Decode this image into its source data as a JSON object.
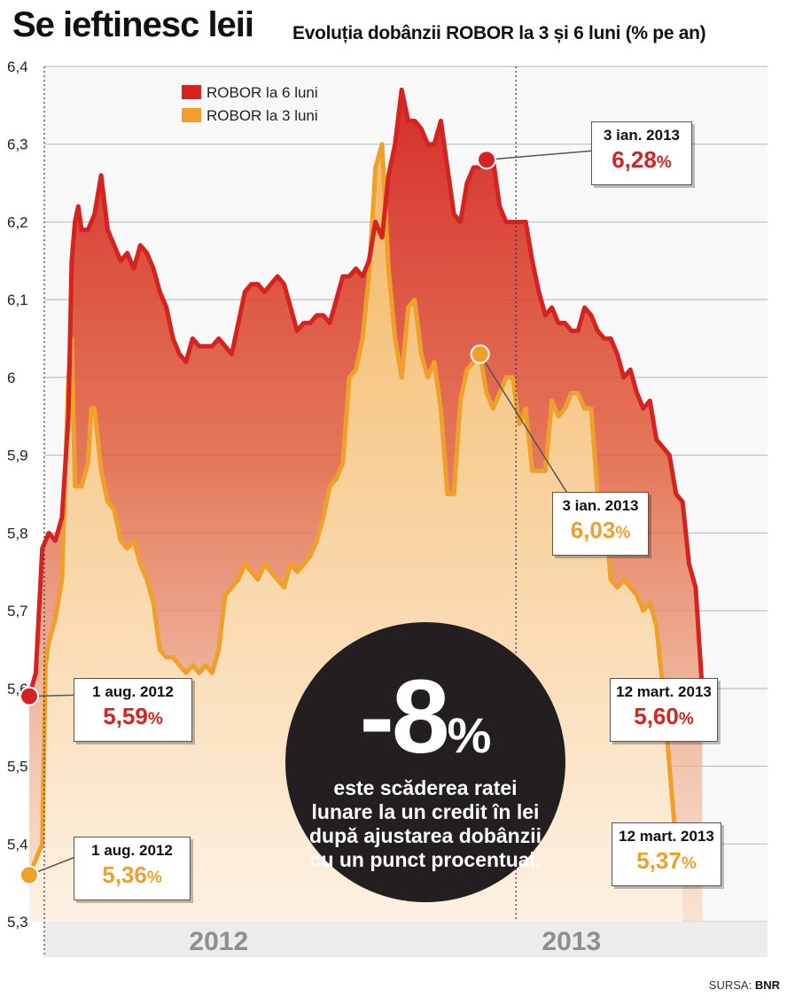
{
  "header": {
    "title": "Se ieftinesc leii",
    "subtitle": "Evoluția dobânzii ROBOR la 3 și 6 luni (% pe an)"
  },
  "source": {
    "label": "SURSA:",
    "name": "BNR"
  },
  "colors": {
    "robor6": "#d42320",
    "robor3": "#f0a02a",
    "circle": "#231f20",
    "grid": "#b5b5b5"
  },
  "highlight": {
    "value": "-8",
    "unit": "%",
    "text": "este scăderea ratei lunare la un credit în lei după ajustarea dobânzii cu un punct procentual."
  },
  "callouts": [
    {
      "date": "1 aug. 2012",
      "value": "5,59",
      "unit": "%",
      "series": "robor6"
    },
    {
      "date": "1 aug. 2012",
      "value": "5,36",
      "unit": "%",
      "series": "robor3"
    },
    {
      "date": "3 ian. 2013",
      "value": "6,28",
      "unit": "%",
      "series": "robor6"
    },
    {
      "date": "3 ian. 2013",
      "value": "6,03",
      "unit": "%",
      "series": "robor3"
    },
    {
      "date": "12 mart. 2013",
      "value": "5,60",
      "unit": "%",
      "series": "robor6"
    },
    {
      "date": "12 mart. 2013",
      "value": "5,37",
      "unit": "%",
      "series": "robor3"
    }
  ],
  "chart_data": {
    "type": "area",
    "title": "Evoluția dobânzii ROBOR la 3 și 6 luni (% pe an)",
    "ylim": [
      5.3,
      6.4
    ],
    "yticks": [
      5.3,
      5.4,
      5.5,
      5.6,
      5.7,
      5.8,
      5.9,
      6,
      6.1,
      6.2,
      6.3,
      6.4
    ],
    "ytick_labels": [
      "5,3",
      "5,4",
      "5,5",
      "5,6",
      "5,7",
      "5,8",
      "5,9",
      "6",
      "6,1",
      "6,2",
      "6,3",
      "6,4"
    ],
    "xlim": [
      0,
      226
    ],
    "x_unit": "zile lucrătoare de la 1 aug. 2012",
    "year_labels": [
      {
        "label": "2012",
        "x": 58
      },
      {
        "label": "2013",
        "x": 166
      }
    ],
    "year_divider_x": 149,
    "grid": true,
    "legend": "top-left",
    "series": [
      {
        "name": "ROBOR la 6 luni",
        "color": "#d42320",
        "points": [
          [
            0,
            5.59
          ],
          [
            2,
            5.62
          ],
          [
            4,
            5.78
          ],
          [
            6,
            5.8
          ],
          [
            8,
            5.79
          ],
          [
            10,
            5.82
          ],
          [
            12,
            5.95
          ],
          [
            13,
            6.15
          ],
          [
            14,
            6.2
          ],
          [
            15,
            6.22
          ],
          [
            16,
            6.19
          ],
          [
            18,
            6.19
          ],
          [
            20,
            6.21
          ],
          [
            22,
            6.26
          ],
          [
            24,
            6.19
          ],
          [
            26,
            6.17
          ],
          [
            28,
            6.15
          ],
          [
            30,
            6.16
          ],
          [
            32,
            6.14
          ],
          [
            34,
            6.17
          ],
          [
            36,
            6.16
          ],
          [
            38,
            6.14
          ],
          [
            40,
            6.11
          ],
          [
            42,
            6.09
          ],
          [
            44,
            6.05
          ],
          [
            46,
            6.03
          ],
          [
            48,
            6.02
          ],
          [
            50,
            6.05
          ],
          [
            52,
            6.04
          ],
          [
            54,
            6.04
          ],
          [
            56,
            6.04
          ],
          [
            58,
            6.05
          ],
          [
            60,
            6.04
          ],
          [
            62,
            6.03
          ],
          [
            64,
            6.07
          ],
          [
            66,
            6.11
          ],
          [
            68,
            6.12
          ],
          [
            70,
            6.12
          ],
          [
            72,
            6.11
          ],
          [
            74,
            6.12
          ],
          [
            76,
            6.13
          ],
          [
            78,
            6.12
          ],
          [
            80,
            6.09
          ],
          [
            82,
            6.06
          ],
          [
            84,
            6.07
          ],
          [
            86,
            6.07
          ],
          [
            88,
            6.08
          ],
          [
            90,
            6.08
          ],
          [
            92,
            6.07
          ],
          [
            94,
            6.1
          ],
          [
            96,
            6.13
          ],
          [
            98,
            6.13
          ],
          [
            100,
            6.14
          ],
          [
            102,
            6.13
          ],
          [
            104,
            6.15
          ],
          [
            106,
            6.2
          ],
          [
            108,
            6.18
          ],
          [
            110,
            6.26
          ],
          [
            112,
            6.3
          ],
          [
            114,
            6.37
          ],
          [
            116,
            6.33
          ],
          [
            118,
            6.33
          ],
          [
            120,
            6.32
          ],
          [
            122,
            6.3
          ],
          [
            124,
            6.3
          ],
          [
            126,
            6.33
          ],
          [
            128,
            6.27
          ],
          [
            130,
            6.21
          ],
          [
            132,
            6.2
          ],
          [
            134,
            6.25
          ],
          [
            136,
            6.27
          ],
          [
            138,
            6.27
          ],
          [
            140,
            6.28
          ],
          [
            142,
            6.28
          ],
          [
            144,
            6.22
          ],
          [
            146,
            6.2
          ],
          [
            148,
            6.2
          ],
          [
            150,
            6.2
          ],
          [
            152,
            6.2
          ],
          [
            154,
            6.15
          ],
          [
            156,
            6.11
          ],
          [
            158,
            6.08
          ],
          [
            160,
            6.09
          ],
          [
            162,
            6.07
          ],
          [
            164,
            6.07
          ],
          [
            166,
            6.06
          ],
          [
            168,
            6.06
          ],
          [
            170,
            6.09
          ],
          [
            172,
            6.08
          ],
          [
            174,
            6.06
          ],
          [
            176,
            6.05
          ],
          [
            178,
            6.05
          ],
          [
            180,
            6.03
          ],
          [
            182,
            6.0
          ],
          [
            184,
            6.01
          ],
          [
            186,
            5.98
          ],
          [
            188,
            5.96
          ],
          [
            190,
            5.97
          ],
          [
            192,
            5.92
          ],
          [
            194,
            5.91
          ],
          [
            196,
            5.9
          ],
          [
            198,
            5.85
          ],
          [
            200,
            5.84
          ],
          [
            202,
            5.76
          ],
          [
            204,
            5.73
          ],
          [
            206,
            5.6
          ]
        ]
      },
      {
        "name": "ROBOR la 3 luni",
        "color": "#f0a02a",
        "points": [
          [
            0,
            5.36
          ],
          [
            2,
            5.38
          ],
          [
            4,
            5.4
          ],
          [
            5,
            5.63
          ],
          [
            6,
            5.66
          ],
          [
            8,
            5.69
          ],
          [
            10,
            5.74
          ],
          [
            11,
            5.87
          ],
          [
            12,
            6.0
          ],
          [
            13,
            6.05
          ],
          [
            14,
            5.86
          ],
          [
            16,
            5.86
          ],
          [
            18,
            5.89
          ],
          [
            19,
            5.96
          ],
          [
            20,
            5.96
          ],
          [
            22,
            5.88
          ],
          [
            24,
            5.84
          ],
          [
            26,
            5.83
          ],
          [
            28,
            5.79
          ],
          [
            30,
            5.78
          ],
          [
            32,
            5.79
          ],
          [
            34,
            5.76
          ],
          [
            36,
            5.74
          ],
          [
            38,
            5.71
          ],
          [
            40,
            5.65
          ],
          [
            42,
            5.64
          ],
          [
            44,
            5.64
          ],
          [
            46,
            5.63
          ],
          [
            48,
            5.62
          ],
          [
            50,
            5.63
          ],
          [
            52,
            5.62
          ],
          [
            54,
            5.63
          ],
          [
            56,
            5.62
          ],
          [
            58,
            5.65
          ],
          [
            60,
            5.72
          ],
          [
            62,
            5.73
          ],
          [
            64,
            5.74
          ],
          [
            66,
            5.76
          ],
          [
            68,
            5.75
          ],
          [
            70,
            5.74
          ],
          [
            72,
            5.76
          ],
          [
            74,
            5.75
          ],
          [
            76,
            5.74
          ],
          [
            78,
            5.73
          ],
          [
            80,
            5.76
          ],
          [
            82,
            5.75
          ],
          [
            84,
            5.76
          ],
          [
            86,
            5.77
          ],
          [
            88,
            5.79
          ],
          [
            90,
            5.82
          ],
          [
            92,
            5.86
          ],
          [
            94,
            5.87
          ],
          [
            96,
            5.89
          ],
          [
            98,
            6.0
          ],
          [
            100,
            6.01
          ],
          [
            102,
            6.05
          ],
          [
            104,
            6.13
          ],
          [
            106,
            6.27
          ],
          [
            108,
            6.3
          ],
          [
            110,
            6.14
          ],
          [
            112,
            6.05
          ],
          [
            114,
            6.0
          ],
          [
            116,
            6.09
          ],
          [
            118,
            6.1
          ],
          [
            120,
            6.03
          ],
          [
            122,
            6.0
          ],
          [
            124,
            6.02
          ],
          [
            126,
            5.96
          ],
          [
            128,
            5.85
          ],
          [
            130,
            5.85
          ],
          [
            132,
            5.97
          ],
          [
            134,
            6.01
          ],
          [
            136,
            6.02
          ],
          [
            138,
            6.03
          ],
          [
            140,
            5.98
          ],
          [
            142,
            5.96
          ],
          [
            144,
            5.98
          ],
          [
            146,
            6.0
          ],
          [
            148,
            6.0
          ],
          [
            150,
            5.94
          ],
          [
            152,
            5.96
          ],
          [
            154,
            5.88
          ],
          [
            156,
            5.88
          ],
          [
            158,
            5.88
          ],
          [
            160,
            5.97
          ],
          [
            162,
            5.95
          ],
          [
            164,
            5.96
          ],
          [
            166,
            5.98
          ],
          [
            168,
            5.98
          ],
          [
            170,
            5.96
          ],
          [
            172,
            5.96
          ],
          [
            174,
            5.85
          ],
          [
            176,
            5.84
          ],
          [
            178,
            5.74
          ],
          [
            180,
            5.73
          ],
          [
            182,
            5.74
          ],
          [
            184,
            5.73
          ],
          [
            186,
            5.72
          ],
          [
            188,
            5.7
          ],
          [
            190,
            5.71
          ],
          [
            192,
            5.68
          ],
          [
            194,
            5.6
          ],
          [
            196,
            5.5
          ],
          [
            198,
            5.4
          ],
          [
            200,
            5.37
          ]
        ]
      }
    ]
  }
}
